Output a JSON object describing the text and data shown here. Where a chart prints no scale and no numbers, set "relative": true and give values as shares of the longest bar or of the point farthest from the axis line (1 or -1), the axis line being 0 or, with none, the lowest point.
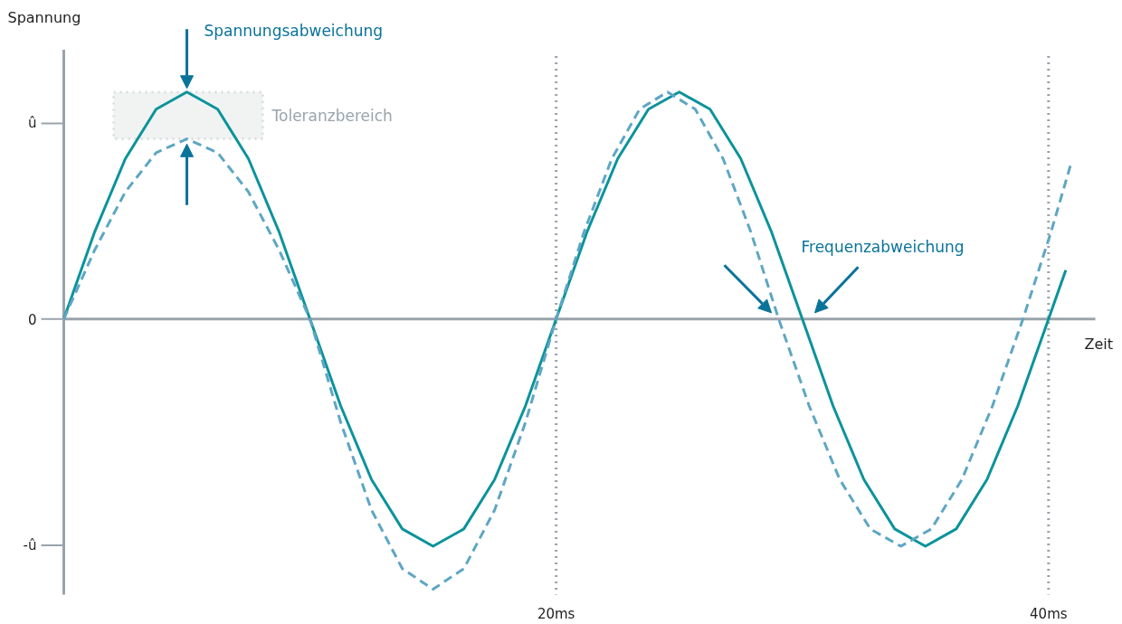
{
  "chart_data": {
    "type": "line",
    "relative": true,
    "xlabel": "Zeit",
    "ylabel": "Spannung",
    "xlim": [
      0,
      41.9
    ],
    "xticks": [
      {
        "value": 20,
        "label": "20ms"
      },
      {
        "value": 40,
        "label": "40ms"
      }
    ],
    "grid": "x",
    "series": [
      {
        "color": "#0b939b",
        "line_style": "solid",
        "x": [
          0,
          1.25,
          2.5,
          3.75,
          5,
          6.25,
          7.5,
          8.75,
          10,
          11.25,
          12.5,
          13.75,
          15,
          16.25,
          17.5,
          18.75,
          20,
          21.25,
          22.5,
          23.75,
          25,
          26.25,
          27.5,
          28.75,
          30,
          31.25,
          32.5,
          33.75,
          35,
          36.25,
          37.5,
          38.75,
          40,
          40.7
        ],
        "values": [
          0,
          0.322,
          0.594,
          0.777,
          0.841,
          0.777,
          0.594,
          0.322,
          0,
          -0.322,
          -0.594,
          -0.777,
          -0.841,
          -0.777,
          -0.594,
          -0.322,
          0,
          0.322,
          0.594,
          0.777,
          0.841,
          0.777,
          0.594,
          0.322,
          0,
          -0.322,
          -0.594,
          -0.777,
          -0.841,
          -0.777,
          -0.594,
          -0.322,
          0,
          0.181
        ]
      },
      {
        "color": "#5ea6c4",
        "line_style": "dashed",
        "x": [
          0,
          1.25,
          2.5,
          3.75,
          5,
          6.25,
          7.5,
          8.75,
          10,
          11.25,
          12.5,
          13.75,
          15,
          16.25,
          17.5,
          18.75,
          20,
          21.13,
          22.26,
          23.39,
          24.52,
          25.65,
          26.78,
          27.91,
          29.04,
          30.28,
          31.52,
          32.76,
          34.0,
          35.24,
          36.48,
          37.72,
          38.96,
          40.1,
          40.9
        ],
        "values": [
          0,
          0.255,
          0.471,
          0.616,
          0.667,
          0.616,
          0.471,
          0.255,
          0,
          -0.383,
          -0.707,
          -0.924,
          -1,
          -0.924,
          -0.707,
          -0.383,
          0,
          0.322,
          0.594,
          0.777,
          0.841,
          0.777,
          0.594,
          0.322,
          0,
          -0.322,
          -0.594,
          -0.777,
          -0.841,
          -0.777,
          -0.594,
          -0.322,
          0,
          0.322,
          0.572
        ]
      }
    ],
    "bands": [
      {
        "axis": "y",
        "from": 0.667,
        "to": 0.841,
        "label": "Toleranzbereich",
        "color": "#f0f3f2"
      }
    ],
    "annotations": [
      {
        "text": "Spannungsabweichung",
        "x": 5,
        "y": 0.841
      },
      "Frequenzabweichung",
      "û",
      "0",
      "-û"
    ]
  }
}
